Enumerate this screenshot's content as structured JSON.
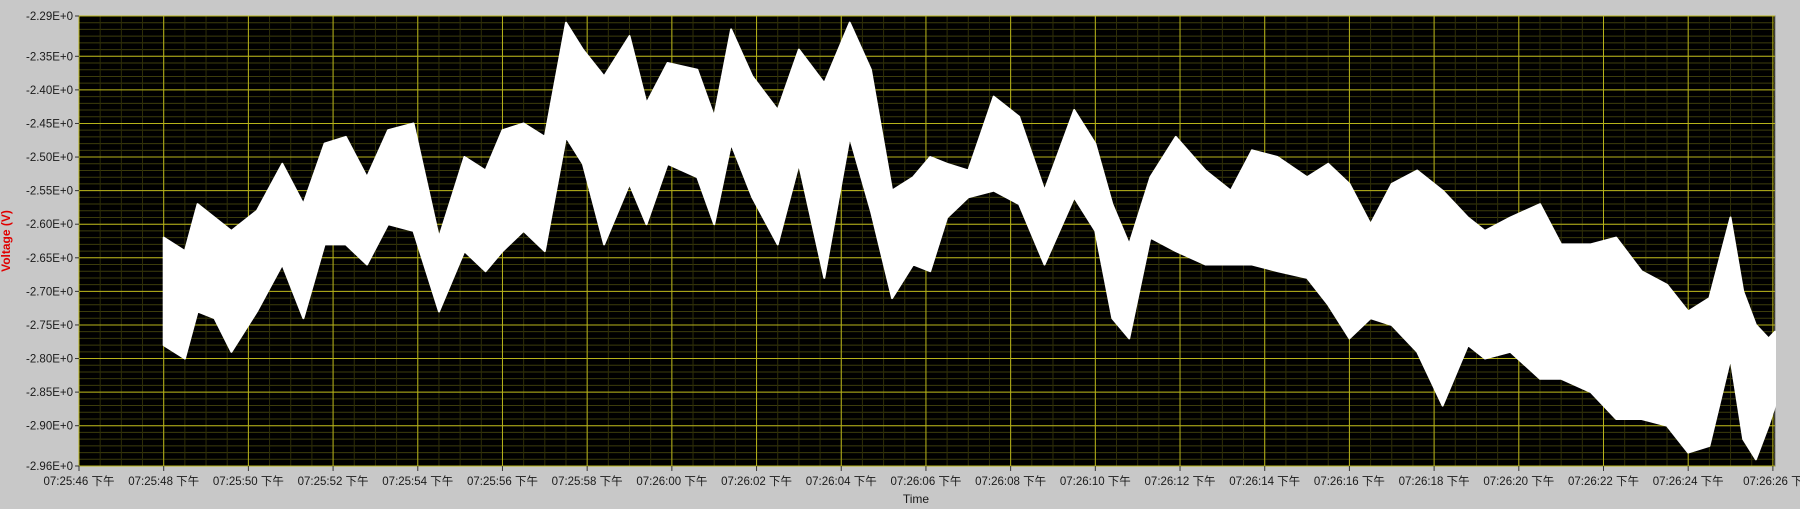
{
  "chart_data": {
    "type": "area",
    "ylabel": "Voltage (V)",
    "xlabel": "Time",
    "ylim": [
      -2.96,
      -2.29
    ],
    "y_ticks": [
      "-2.29E+0",
      "-2.35E+0",
      "-2.40E+0",
      "-2.45E+0",
      "-2.50E+0",
      "-2.55E+0",
      "-2.60E+0",
      "-2.65E+0",
      "-2.70E+0",
      "-2.75E+0",
      "-2.80E+0",
      "-2.85E+0",
      "-2.90E+0",
      "-2.96E+0"
    ],
    "x_ticks": [
      "07:25:46 下午",
      "07:25:48 下午",
      "07:25:50 下午",
      "07:25:52 下午",
      "07:25:54 下午",
      "07:25:56 下午",
      "07:25:58 下午",
      "07:26:00 下午",
      "07:26:02 下午",
      "07:26:04 下午",
      "07:26:06 下午",
      "07:26:08 下午",
      "07:26:10 下午",
      "07:26:12 下午",
      "07:26:14 下午",
      "07:26:16 下午",
      "07:26:18 下午",
      "07:26:20 下午",
      "07:26:22 下午",
      "07:26:24 下午",
      "07:26:26 下"
    ],
    "xlim_seconds": [
      0,
      40.05
    ],
    "x_tick_seconds": [
      0,
      2,
      4,
      6,
      8,
      10,
      12,
      14,
      16,
      18,
      20,
      22,
      24,
      26,
      28,
      30,
      32,
      34,
      36,
      38,
      40
    ],
    "grid": true,
    "legend": "none",
    "series": [
      {
        "x_seconds": [
          2.0,
          2.5,
          2.8,
          3.2,
          3.6,
          4.2,
          4.8,
          5.3,
          5.8,
          6.3,
          6.8,
          7.3,
          7.9,
          8.5,
          9.1,
          9.6,
          10.0,
          10.5,
          11.0,
          11.5,
          11.9,
          12.4,
          13.0,
          13.4,
          13.9,
          14.6,
          15.0,
          15.4,
          15.9,
          16.5,
          17.0,
          17.6,
          18.2,
          18.7,
          19.2,
          19.7,
          20.1,
          20.5,
          21.0,
          21.6,
          22.2,
          22.8,
          23.5,
          24.0,
          24.4,
          24.8,
          25.3,
          25.9,
          26.6,
          27.2,
          27.7,
          28.3,
          29.0,
          29.5,
          30.0,
          30.5,
          31.0,
          31.6,
          32.2,
          32.8,
          33.2,
          33.8,
          34.5,
          35.0,
          35.7,
          36.3,
          36.9,
          37.5,
          38.0,
          38.5,
          39.0,
          39.3,
          39.6,
          39.9,
          40.05
        ],
        "y_high": [
          -2.62,
          -2.64,
          -2.57,
          -2.59,
          -2.61,
          -2.58,
          -2.51,
          -2.57,
          -2.48,
          -2.47,
          -2.53,
          -2.46,
          -2.45,
          -2.62,
          -2.5,
          -2.52,
          -2.46,
          -2.45,
          -2.47,
          -2.3,
          -2.34,
          -2.38,
          -2.32,
          -2.42,
          -2.36,
          -2.37,
          -2.44,
          -2.31,
          -2.38,
          -2.43,
          -2.34,
          -2.39,
          -2.3,
          -2.37,
          -2.55,
          -2.53,
          -2.5,
          -2.51,
          -2.52,
          -2.41,
          -2.44,
          -2.55,
          -2.43,
          -2.48,
          -2.57,
          -2.63,
          -2.53,
          -2.47,
          -2.52,
          -2.55,
          -2.49,
          -2.5,
          -2.53,
          -2.51,
          -2.54,
          -2.6,
          -2.54,
          -2.52,
          -2.55,
          -2.59,
          -2.61,
          -2.59,
          -2.57,
          -2.63,
          -2.63,
          -2.62,
          -2.67,
          -2.69,
          -2.73,
          -2.71,
          -2.59,
          -2.7,
          -2.75,
          -2.77,
          -2.76
        ],
        "y_low": [
          -2.78,
          -2.8,
          -2.73,
          -2.74,
          -2.79,
          -2.73,
          -2.66,
          -2.74,
          -2.63,
          -2.63,
          -2.66,
          -2.6,
          -2.61,
          -2.73,
          -2.64,
          -2.67,
          -2.64,
          -2.61,
          -2.64,
          -2.47,
          -2.51,
          -2.63,
          -2.54,
          -2.6,
          -2.51,
          -2.53,
          -2.6,
          -2.48,
          -2.56,
          -2.63,
          -2.51,
          -2.68,
          -2.47,
          -2.58,
          -2.71,
          -2.66,
          -2.67,
          -2.59,
          -2.56,
          -2.55,
          -2.57,
          -2.66,
          -2.56,
          -2.61,
          -2.74,
          -2.77,
          -2.62,
          -2.64,
          -2.66,
          -2.66,
          -2.66,
          -2.67,
          -2.68,
          -2.72,
          -2.77,
          -2.74,
          -2.75,
          -2.79,
          -2.87,
          -2.78,
          -2.8,
          -2.79,
          -2.83,
          -2.83,
          -2.85,
          -2.89,
          -2.89,
          -2.9,
          -2.94,
          -2.93,
          -2.8,
          -2.92,
          -2.95,
          -2.9,
          -2.87
        ]
      }
    ]
  }
}
